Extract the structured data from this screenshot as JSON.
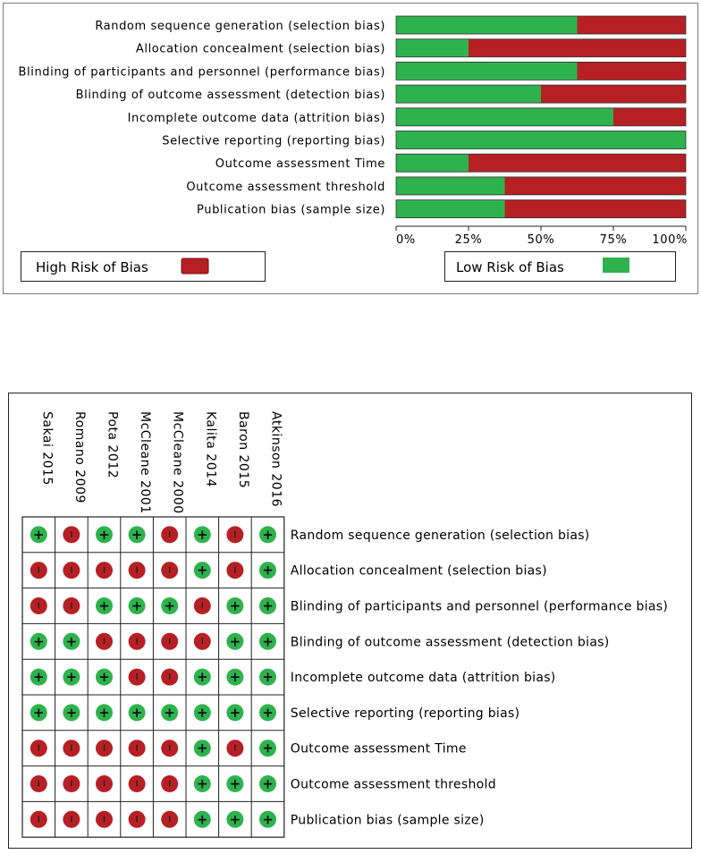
{
  "colors": {
    "high": "#b62025",
    "low": "#2eb24e",
    "frame": "#7a7a7a"
  },
  "chart_data": [
    {
      "type": "bar",
      "stacked": true,
      "orientation": "horizontal",
      "categories": [
        "Random sequence generation (selection bias)",
        "Allocation concealment (selection bias)",
        "Blinding of participants and personnel (performance bias)",
        "Blinding of outcome assessment (detection bias)",
        "Incomplete outcome data (attrition bias)",
        "Selective reporting (reporting bias)",
        "Outcome assessment Time",
        "Outcome assessment threshold",
        "Publication bias (sample size)"
      ],
      "series": [
        {
          "name": "Low Risk of Bias",
          "values": [
            62.5,
            25,
            62.5,
            50,
            75,
            100,
            25,
            37.5,
            37.5
          ]
        },
        {
          "name": "High Risk of Bias",
          "values": [
            37.5,
            75,
            37.5,
            50,
            25,
            0,
            75,
            62.5,
            62.5
          ]
        }
      ],
      "xlim": [
        0,
        100
      ],
      "xticks": [
        "0%",
        "25%",
        "50%",
        "75%",
        "100%"
      ],
      "legend": {
        "high_label": "High Risk of Bias",
        "low_label": "Low Risk of Bias",
        "position": "bottom"
      }
    },
    {
      "type": "table",
      "studies": [
        "Sakai 2015",
        "Romano 2009",
        "Pota 2012",
        "McCleane 2001",
        "McCleane 2000",
        "Kalita 2014",
        "Baron 2015",
        "Atkinson 2016"
      ],
      "domains": [
        "Random sequence generation (selection bias)",
        "Allocation concealment (selection bias)",
        "Blinding of participants and personnel (performance bias)",
        "Blinding of outcome assessment (detection bias)",
        "Incomplete outcome data (attrition bias)",
        "Selective reporting (reporting bias)",
        "Outcome assessment Time",
        "Outcome assessment threshold",
        "Publication bias (sample size)"
      ],
      "judgements": [
        [
          "+",
          "-",
          "+",
          "+",
          "-",
          "+",
          "-",
          "+"
        ],
        [
          "-",
          "-",
          "-",
          "-",
          "-",
          "+",
          "-",
          "+"
        ],
        [
          "-",
          "-",
          "+",
          "+",
          "+",
          "-",
          "+",
          "+"
        ],
        [
          "+",
          "+",
          "-",
          "-",
          "-",
          "-",
          "+",
          "+"
        ],
        [
          "+",
          "+",
          "+",
          "-",
          "-",
          "+",
          "+",
          "+"
        ],
        [
          "+",
          "+",
          "+",
          "+",
          "+",
          "+",
          "+",
          "+"
        ],
        [
          "-",
          "-",
          "-",
          "-",
          "-",
          "+",
          "-",
          "+"
        ],
        [
          "-",
          "-",
          "-",
          "-",
          "-",
          "+",
          "+",
          "+"
        ],
        [
          "-",
          "-",
          "-",
          "-",
          "-",
          "+",
          "+",
          "+"
        ]
      ]
    }
  ]
}
